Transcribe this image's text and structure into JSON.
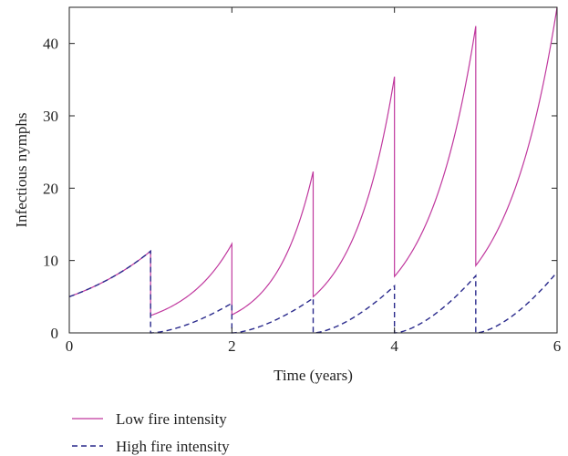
{
  "chart_data": {
    "type": "line",
    "title": "",
    "xlabel": "Time (years)",
    "ylabel": "Infectious nymphs",
    "xlim": [
      0,
      6
    ],
    "ylim": [
      0,
      45
    ],
    "xticks": [
      0,
      2,
      4,
      6
    ],
    "yticks": [
      0,
      10,
      20,
      30,
      40
    ],
    "grid": false,
    "legend_placement": "bottom-left, below plot",
    "series": [
      {
        "name": "Low fire intensity",
        "style": "solid",
        "color": "#c0389e",
        "segments": [
          {
            "t": [
              0,
              1
            ],
            "y": [
              5.0,
              11.3
            ]
          },
          {
            "t": [
              1,
              2
            ],
            "y": [
              2.4,
              12.3
            ]
          },
          {
            "t": [
              2,
              3
            ],
            "y": [
              2.5,
              22.3
            ]
          },
          {
            "t": [
              3,
              4
            ],
            "y": [
              5.0,
              35.4
            ]
          },
          {
            "t": [
              4,
              5
            ],
            "y": [
              7.8,
              42.4
            ]
          },
          {
            "t": [
              5,
              6
            ],
            "y": [
              9.3,
              45.0
            ]
          }
        ]
      },
      {
        "name": "High fire intensity",
        "style": "dashed",
        "color": "#2a2a8c",
        "segments": [
          {
            "t": [
              0,
              1
            ],
            "y": [
              5.0,
              11.3
            ]
          },
          {
            "t": [
              1,
              2
            ],
            "y": [
              0.0,
              4.1
            ]
          },
          {
            "t": [
              2,
              3
            ],
            "y": [
              0.0,
              4.8
            ]
          },
          {
            "t": [
              3,
              4
            ],
            "y": [
              0.0,
              6.5
            ]
          },
          {
            "t": [
              4,
              5
            ],
            "y": [
              0.0,
              7.9
            ]
          },
          {
            "t": [
              5,
              6
            ],
            "y": [
              0.0,
              8.4
            ]
          }
        ]
      }
    ]
  }
}
